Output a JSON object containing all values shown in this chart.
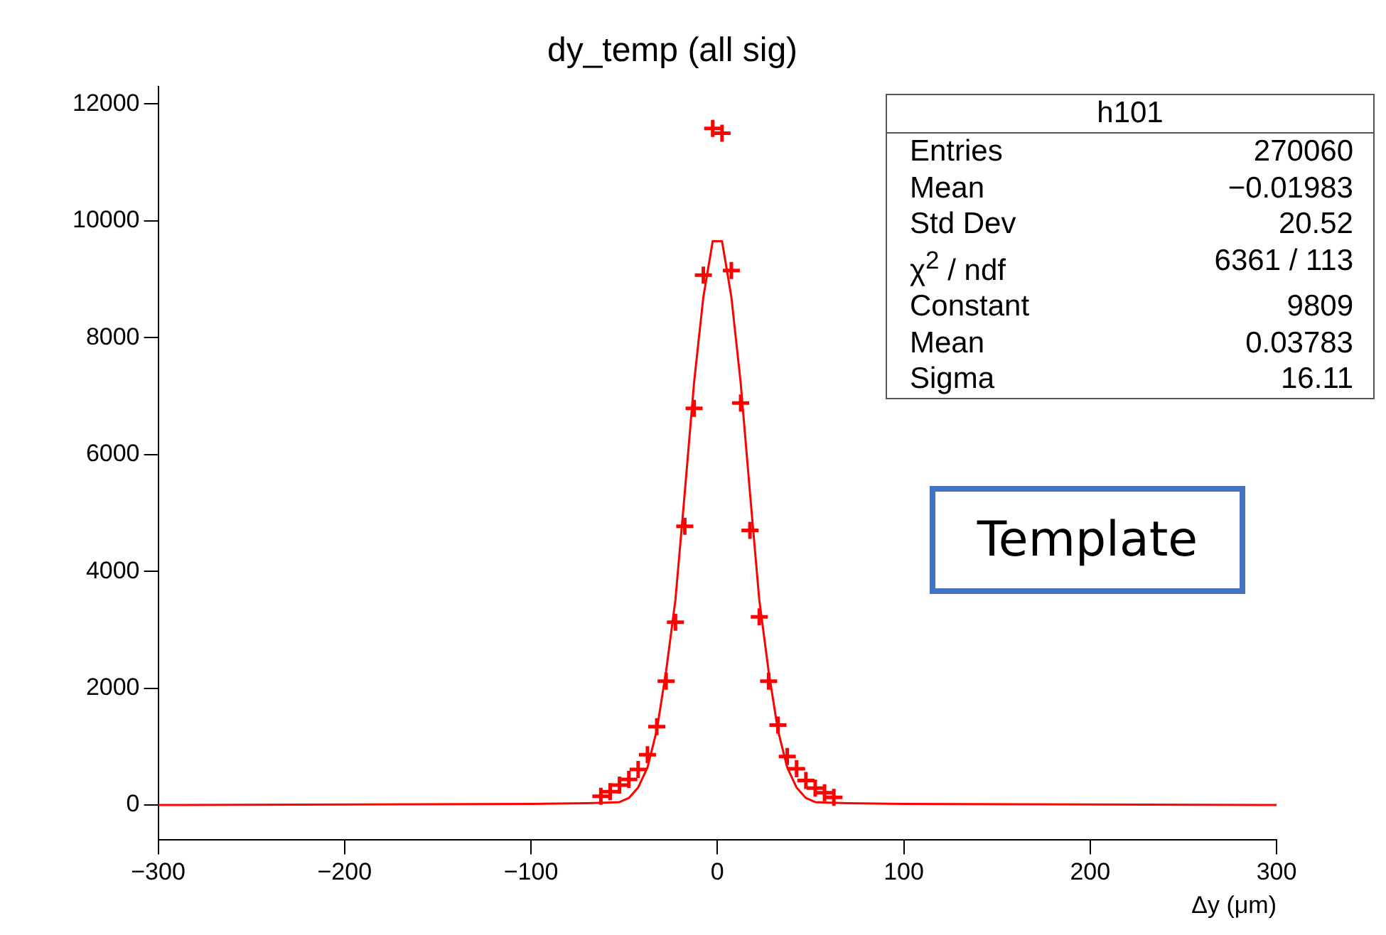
{
  "chart_data": {
    "type": "scatter",
    "title": "dy_temp (all sig)",
    "xlabel": "Δy (μm)",
    "xlim": [
      -300,
      300
    ],
    "xticks": [
      -300,
      -200,
      -100,
      0,
      100,
      200,
      300
    ],
    "ylim": [
      -600,
      12300
    ],
    "yticks": [
      0,
      2000,
      4000,
      6000,
      8000,
      10000,
      12000
    ],
    "grid": false,
    "legend": false,
    "marker": "cross",
    "series": [
      {
        "color": "#ff0000",
        "x": [
          -62.5,
          -57.5,
          -52.5,
          -47.5,
          -42.5,
          -37.5,
          -32.5,
          -27.5,
          -22.5,
          -17.5,
          -12.5,
          -7.5,
          -2.5,
          2.5,
          7.5,
          12.5,
          17.5,
          22.5,
          27.5,
          32.5,
          37.5,
          42.5,
          47.5,
          52.5,
          57.5,
          62.5
        ],
        "values": [
          150,
          230,
          340,
          440,
          610,
          860,
          1340,
          2120,
          3130,
          4770,
          6790,
          9070,
          11580,
          11500,
          9150,
          6880,
          4700,
          3220,
          2120,
          1370,
          830,
          620,
          420,
          290,
          210,
          130
        ]
      },
      {
        "type": "line",
        "color": "#ff0000",
        "marker": "none",
        "x": [
          -300,
          -100,
          -70,
          -60,
          -52.5,
          -47.5,
          -42.5,
          -37.5,
          -32.5,
          -27.5,
          -22.5,
          -17.5,
          -12.5,
          -7.5,
          -2.5,
          2.5,
          7.5,
          12.5,
          17.5,
          22.5,
          27.5,
          32.5,
          37.5,
          42.5,
          47.5,
          52.5,
          60,
          70,
          100,
          300
        ],
        "values": [
          0,
          20,
          30,
          40,
          50,
          120,
          300,
          640,
          1280,
          2290,
          3510,
          5340,
          7230,
          8700,
          9650,
          9650,
          8700,
          7230,
          5340,
          3510,
          2290,
          1280,
          640,
          300,
          120,
          50,
          40,
          30,
          20,
          0
        ]
      }
    ],
    "annotations": [
      "h101",
      "Entries",
      "270060",
      "Mean",
      "−0.01983",
      "Std Dev",
      "20.52",
      "χ$^{2}$ / ndf",
      "6361 / 113",
      "Constant",
      "9809",
      "Mean",
      "0.03783",
      "Sigma",
      "16.11",
      "Template"
    ]
  }
}
